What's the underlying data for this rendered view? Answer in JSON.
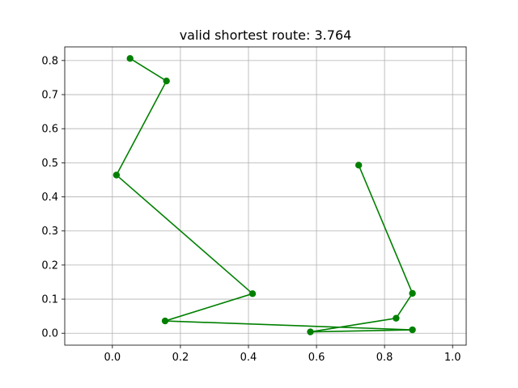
{
  "chart_data": {
    "type": "line",
    "title": "valid shortest route: 3.764",
    "xlabel": "",
    "ylabel": "",
    "xlim": [
      -0.14,
      1.04
    ],
    "ylim": [
      -0.035,
      0.84
    ],
    "xticks": [
      0.0,
      0.2,
      0.4,
      0.6,
      0.8,
      1.0
    ],
    "xtick_labels": [
      "0.0",
      "0.2",
      "0.4",
      "0.6",
      "0.8",
      "1.0"
    ],
    "yticks": [
      0.0,
      0.1,
      0.2,
      0.3,
      0.4,
      0.5,
      0.6,
      0.7,
      0.8
    ],
    "ytick_labels": [
      "0.0",
      "0.1",
      "0.2",
      "0.3",
      "0.4",
      "0.5",
      "0.6",
      "0.7",
      "0.8"
    ],
    "grid": true,
    "legend": "none",
    "series": [
      {
        "color": "#008000",
        "marker": "circle",
        "x": [
          0.052,
          0.159,
          0.012,
          0.412,
          0.155,
          0.882,
          0.582,
          0.834,
          0.882,
          0.724
        ],
        "y": [
          0.806,
          0.74,
          0.464,
          0.116,
          0.036,
          0.01,
          0.004,
          0.044,
          0.117,
          0.493
        ]
      }
    ]
  }
}
